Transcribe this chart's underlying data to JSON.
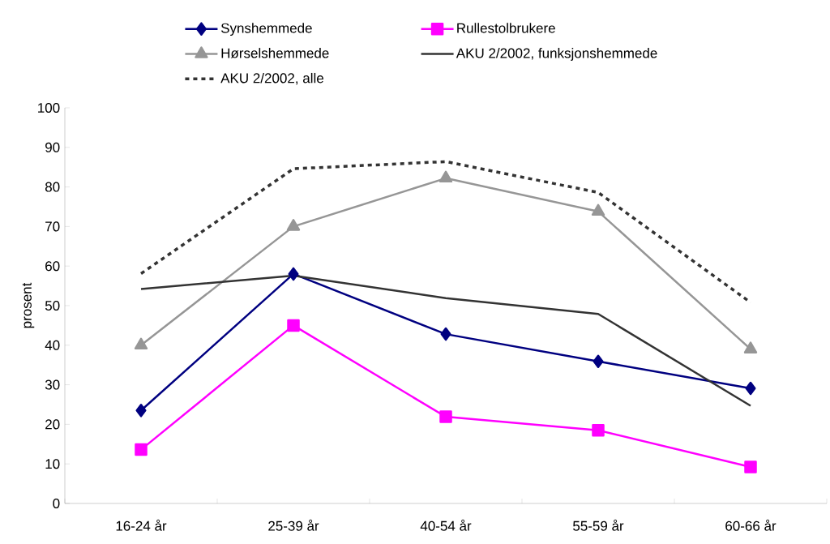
{
  "chart_data": {
    "type": "line",
    "ylabel": "prosent",
    "categories": [
      "16-24 år",
      "25-39 år",
      "40-54 år",
      "55-59 år",
      "60-66 år"
    ],
    "ylim": [
      0,
      100
    ],
    "yticks": [
      0,
      10,
      20,
      30,
      40,
      50,
      60,
      70,
      80,
      90,
      100
    ],
    "grid": false,
    "legend": "top",
    "series": [
      {
        "name": "Synshemmede",
        "color": "#000080",
        "marker": "diamond",
        "values": [
          23.5,
          58,
          42.8,
          35.9,
          29.1
        ]
      },
      {
        "name": "Rullestolbrukere",
        "color": "#ff00ff",
        "marker": "square",
        "values": [
          13.6,
          45,
          21.9,
          18.5,
          9.2
        ]
      },
      {
        "name": "Hørselshemmede",
        "color": "#969696",
        "marker": "triangle",
        "values": [
          40,
          70,
          82.2,
          73.8,
          39
        ]
      },
      {
        "name": "AKU 2/2002, funksjonshemmede",
        "color": "#333333",
        "marker": "none",
        "values": [
          54.2,
          57.6,
          51.9,
          47.9,
          24.7
        ]
      },
      {
        "name": "AKU 2/2002, alle",
        "color": "#333333",
        "marker": "none",
        "line_style": "dashed",
        "values": [
          58.1,
          84.6,
          86.4,
          78.6,
          50.8
        ]
      }
    ]
  }
}
